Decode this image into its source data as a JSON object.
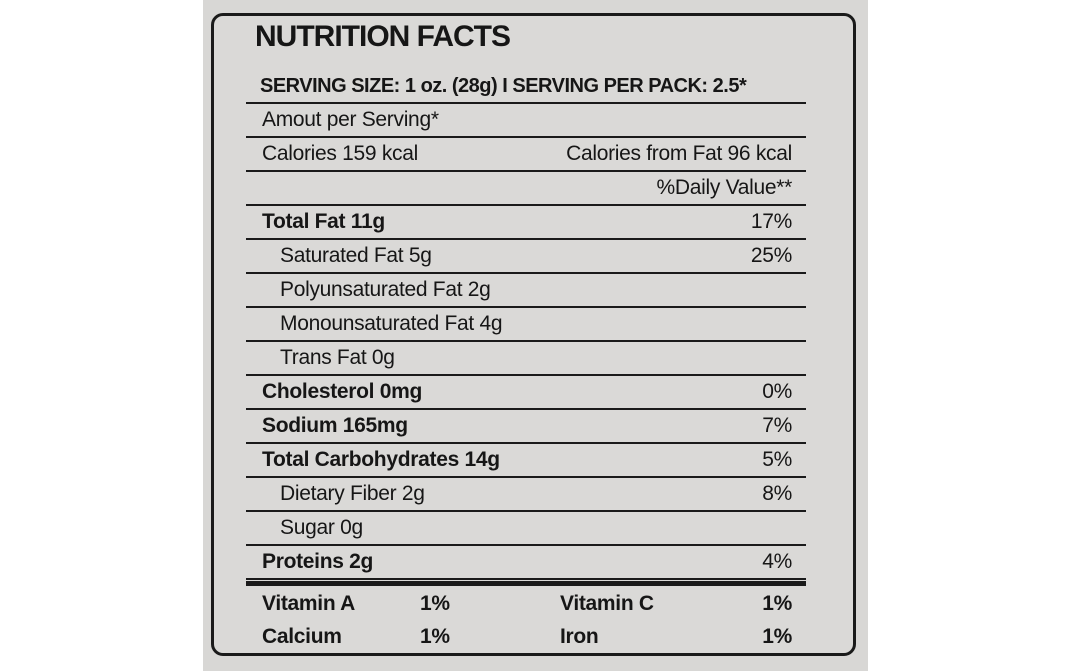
{
  "label": {
    "title": "NUTRITION FACTS",
    "serving_line": "SERVING SIZE: 1 oz. (28g) I SERVING PER PACK: 2.5*",
    "amount_per_serving": "Amout per Serving*",
    "calories": "Calories 159 kcal",
    "calories_from_fat": "Calories from Fat 96 kcal",
    "daily_value_header": "%Daily Value**",
    "nutrients": [
      {
        "name": "Total Fat 11g",
        "daily_value": "17%",
        "bold": true,
        "indent": false
      },
      {
        "name": "Saturated Fat 5g",
        "daily_value": "25%",
        "bold": false,
        "indent": true
      },
      {
        "name": "Polyunsaturated Fat 2g",
        "daily_value": "",
        "bold": false,
        "indent": true
      },
      {
        "name": "Monounsaturated Fat 4g",
        "daily_value": "",
        "bold": false,
        "indent": true
      },
      {
        "name": "Trans Fat 0g",
        "daily_value": "",
        "bold": false,
        "indent": true
      },
      {
        "name": "Cholesterol 0mg",
        "daily_value": "0%",
        "bold": true,
        "indent": false
      },
      {
        "name": "Sodium 165mg",
        "daily_value": "7%",
        "bold": true,
        "indent": false
      },
      {
        "name": "Total Carbohydrates 14g",
        "daily_value": "5%",
        "bold": true,
        "indent": false
      },
      {
        "name": "Dietary Fiber 2g",
        "daily_value": "8%",
        "bold": false,
        "indent": true
      },
      {
        "name": "Sugar 0g",
        "daily_value": "",
        "bold": false,
        "indent": true
      },
      {
        "name": "Proteins 2g",
        "daily_value": "4%",
        "bold": true,
        "indent": false
      }
    ],
    "micronutrients": [
      {
        "name": "Vitamin A",
        "value": "1%"
      },
      {
        "name": "Vitamin C",
        "value": "1%"
      },
      {
        "name": "Calcium",
        "value": "1%"
      },
      {
        "name": "Iron",
        "value": "1%"
      }
    ],
    "colors": {
      "page_bg": "#ffffff",
      "photo_bg": "#d8d7d5",
      "panel_bg": "#dad9d7",
      "border": "#1a1a1a",
      "text": "#161616"
    }
  }
}
